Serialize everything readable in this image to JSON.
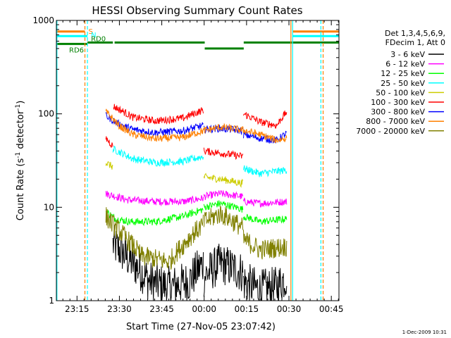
{
  "chart_data": {
    "type": "line",
    "title": "HESSI Observing Summary Count Rates",
    "xlabel": "Start Time (27-Nov-05 23:07:42)",
    "ylabel_main": "Count Rate (s",
    "ylabel_sup1": "-1",
    "ylabel_mid": " detector",
    "ylabel_sup2": "-1",
    "ylabel_end": ")",
    "y_scale": "log",
    "ylim": [
      1,
      1000
    ],
    "xlim_minutes_after_start": [
      0,
      100
    ],
    "x_ticks": [
      {
        "label": "23:15",
        "t": 7.3
      },
      {
        "label": "23:30",
        "t": 22.3
      },
      {
        "label": "23:45",
        "t": 37.3
      },
      {
        "label": "00:00",
        "t": 52.3
      },
      {
        "label": "00:15",
        "t": 67.3
      },
      {
        "label": "00:30",
        "t": 82.3
      },
      {
        "label": "00:45",
        "t": 97.3
      }
    ],
    "y_ticks": [
      {
        "label": "1",
        "v": 1
      },
      {
        "label": "10",
        "v": 10
      },
      {
        "label": "100",
        "v": 100
      },
      {
        "label": "1000",
        "v": 1000
      }
    ],
    "legend_header": [
      "Det 1,3,4,5,6,9,",
      "FDecim 1, Att 0"
    ],
    "legend_placement": "right",
    "series": [
      {
        "name": "3 - 6 keV",
        "color": "#000000",
        "segments": [
          {
            "t": [
              20.0,
              27.0,
              33.0,
              40.0,
              47.0,
              52.0
            ],
            "y": [
              4.0,
              2.5,
              1.6,
              1.4,
              1.6,
              2.5
            ]
          },
          {
            "t": [
              52.2,
              58.0,
              66.0
            ],
            "y": [
              1.8,
              2.5,
              2.0
            ]
          },
          {
            "t": [
              66.2,
              72.0,
              78.0,
              81.5
            ],
            "y": [
              1.6,
              1.3,
              1.4,
              1.8
            ]
          }
        ]
      },
      {
        "name": "6 - 12 keV",
        "color": "#ff00ff",
        "segments": [
          {
            "t": [
              17.5,
              25.0,
              35.0,
              45.0,
              52.0
            ],
            "y": [
              14.0,
              12.0,
              11.5,
              11.5,
              12.5
            ]
          },
          {
            "t": [
              52.2,
              58.0,
              66.0
            ],
            "y": [
              13.0,
              14.0,
              13.0
            ]
          },
          {
            "t": [
              66.2,
              72.0,
              81.5
            ],
            "y": [
              11.5,
              11.0,
              11.5
            ]
          }
        ]
      },
      {
        "name": "12 - 25 keV",
        "color": "#00ff00",
        "segments": [
          {
            "t": [
              17.5,
              21.0,
              26.0,
              35.0,
              45.0,
              52.0
            ],
            "y": [
              9.0,
              7.5,
              7.0,
              7.0,
              8.0,
              9.5
            ]
          },
          {
            "t": [
              52.2,
              58.0,
              66.0
            ],
            "y": [
              10.0,
              11.0,
              9.5
            ]
          },
          {
            "t": [
              66.2,
              72.0,
              81.5
            ],
            "y": [
              8.0,
              7.0,
              7.5
            ]
          }
        ]
      },
      {
        "name": "25 - 50 keV",
        "color": "#00ffff",
        "segments": [
          {
            "t": [
              20.0,
              27.0,
              35.0,
              45.0,
              52.0
            ],
            "y": [
              42.0,
              33.0,
              30.0,
              31.0,
              35.0
            ]
          },
          {
            "t": [
              66.2,
              72.0,
              81.5
            ],
            "y": [
              26.0,
              23.0,
              25.0
            ]
          }
        ]
      },
      {
        "name": "50 - 100 keV",
        "color": "#cccc00",
        "segments": [
          {
            "t": [
              17.5,
              20.0
            ],
            "y": [
              30.0,
              27.0
            ]
          },
          {
            "t": [
              52.2,
              58.0,
              66.0
            ],
            "y": [
              21.0,
              20.0,
              18.0
            ]
          }
        ]
      },
      {
        "name": "100 - 300 keV",
        "color": "#ff0000",
        "segments": [
          {
            "t": [
              17.5,
              20.0
            ],
            "y": [
              55.0,
              45.0
            ]
          },
          {
            "t": [
              20.2,
              27.0,
              35.0,
              45.0,
              52.0
            ],
            "y": [
              120.0,
              92.0,
              84.0,
              90.0,
              110.0
            ]
          },
          {
            "t": [
              52.2,
              58.0,
              66.0
            ],
            "y": [
              40.0,
              38.0,
              35.0
            ]
          },
          {
            "t": [
              66.2,
              72.0,
              78.0,
              81.5
            ],
            "y": [
              100.0,
              82.0,
              75.0,
              105.0
            ]
          }
        ]
      },
      {
        "name": "300 - 800 keV",
        "color": "#0000ff",
        "segments": [
          {
            "t": [
              17.5,
              22.0,
              27.0,
              35.0,
              45.0,
              52.0
            ],
            "y": [
              95.0,
              78.0,
              68.0,
              63.0,
              66.0,
              75.0
            ]
          },
          {
            "t": [
              52.2,
              58.0,
              66.0
            ],
            "y": [
              68.0,
              70.0,
              66.0
            ]
          },
          {
            "t": [
              66.2,
              72.0,
              78.0,
              81.5
            ],
            "y": [
              60.0,
              55.0,
              52.0,
              62.0
            ]
          }
        ]
      },
      {
        "name": "800 - 7000 keV",
        "color": "#ff8000",
        "segments": [
          {
            "t": [
              17.5,
              22.0,
              27.0,
              35.0,
              45.0,
              52.0,
              58.0,
              66.0,
              72.0,
              78.0,
              81.5
            ],
            "y": [
              105.0,
              75.0,
              60.0,
              54.0,
              56.0,
              66.0,
              72.0,
              67.0,
              60.0,
              52.0,
              55.0
            ]
          }
        ]
      },
      {
        "name": "7000 - 20000 keV",
        "color": "#808000",
        "segments": [
          {
            "t": [
              17.5,
              20.0,
              25.0,
              30.0,
              35.0,
              40.0,
              45.0,
              52.0
            ],
            "y": [
              8.0,
              6.5,
              4.5,
              3.0,
              2.8,
              2.6,
              4.0,
              6.5
            ]
          },
          {
            "t": [
              52.2,
              58.0,
              66.0
            ],
            "y": [
              7.0,
              8.5,
              6.0
            ]
          },
          {
            "t": [
              66.2,
              72.0,
              81.5
            ],
            "y": [
              4.5,
              3.5,
              3.8
            ]
          }
        ]
      }
    ],
    "vertical_lines": [
      {
        "t": 0.2,
        "color": "#00ffff",
        "style": "solid"
      },
      {
        "t": 10.1,
        "color": "#ff8000",
        "style": "dashed"
      },
      {
        "t": 11.0,
        "color": "#00ffff",
        "style": "dashed"
      },
      {
        "t": 83.0,
        "color": "#ff8000",
        "style": "solid"
      },
      {
        "t": 83.6,
        "color": "#00ffff",
        "style": "solid"
      },
      {
        "t": 93.6,
        "color": "#00ffff",
        "style": "dashed"
      },
      {
        "t": 94.4,
        "color": "#ff8000",
        "style": "dashed"
      }
    ],
    "flag_bars": [
      {
        "label": "S",
        "color": "#ff8000",
        "y": 760,
        "segments": [
          [
            0,
            10.1
          ],
          [
            83.6,
            100
          ]
        ]
      },
      {
        "label": "N",
        "color": "#00ffff",
        "y": 680,
        "segments": [
          [
            0,
            11.0
          ],
          [
            83.6,
            100
          ]
        ]
      },
      {
        "label": "RD0",
        "color": "#008000",
        "y": 580,
        "segments": [
          [
            11.0,
            20.0
          ],
          [
            20.6,
            52.5
          ],
          [
            66.3,
            100
          ]
        ]
      },
      {
        "label": "",
        "color": "#008000",
        "y": 500,
        "segments": [
          [
            52.5,
            66.3
          ]
        ]
      },
      {
        "label": "RD6",
        "color": "#008000",
        "y": 560,
        "segments": [
          [
            0,
            11.0
          ]
        ]
      }
    ],
    "timestamp": "1-Dec-2009 10:31"
  }
}
